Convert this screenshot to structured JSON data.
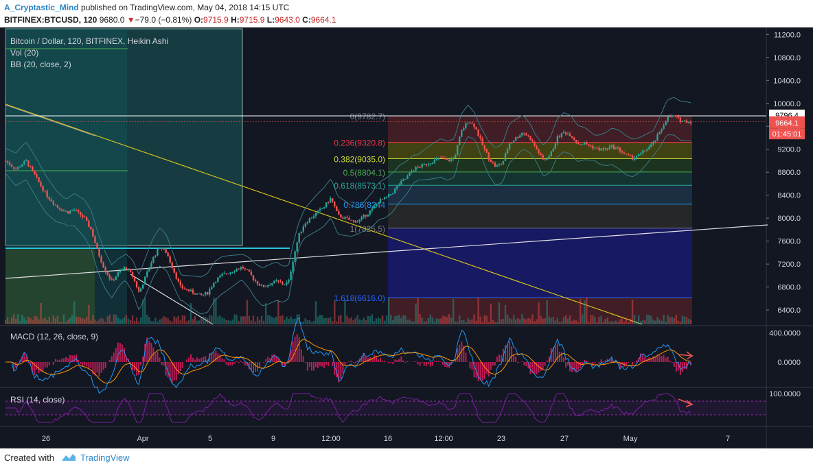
{
  "header": {
    "author": "A_Cryptastic_Mind",
    "published": " published on TradingView.com, May 04, 2018 14:15 UTC",
    "symbol": "BITFINEX:BTCUSD, 120",
    "last": " 9680.0 ",
    "change": "−79.0 (−0.81%)",
    "o_label": " O:",
    "o_val": "9715.9",
    "h_label": " H:",
    "h_val": "9715.9",
    "l_label": " L:",
    "l_val": "9643.0",
    "c_label": " C:",
    "c_val": "9664.1"
  },
  "legend": {
    "title": "Bitcoin / Dollar, 120, BITFINEX, Heikin Ashi",
    "vol": "Vol (20)",
    "bb": "BB (20, close, 2)",
    "macd": "MACD (12, 26, close, 9)",
    "rsi": "RSI (14, close)"
  },
  "colors": {
    "background": "#131722",
    "up": "#26a69a",
    "down": "#ef5350",
    "macd_hist": "#e91e63",
    "rsi": "#7b1fa2",
    "fib_blue": "#1a1a6e"
  },
  "footer": {
    "created": "Created with",
    "brand": "TradingView"
  },
  "chart_data": [
    {
      "type": "candlestick",
      "title": "Bitcoin / Dollar, 120, BITFINEX, Heikin Ashi",
      "ylim": [
        6150,
        11300
      ],
      "y_ticks": [
        "11200.0",
        "10800.0",
        "10400.0",
        "10000.0",
        "9600.0",
        "9200.0",
        "8800.0",
        "8400.0",
        "8000.0",
        "7600.0",
        "7200.0",
        "6800.0",
        "6400.0"
      ],
      "y_tick_values": [
        11200,
        10800,
        10400,
        10000,
        9600,
        9200,
        8800,
        8400,
        8000,
        7600,
        7200,
        6800,
        6400
      ],
      "x_ticks": [
        "26",
        "Apr",
        "5",
        "9",
        "12:00",
        "16",
        "12:00",
        "23",
        "27",
        "May",
        "7"
      ],
      "price_path": [
        [
          0,
          9000
        ],
        [
          0.015,
          8850
        ],
        [
          0.03,
          9000
        ],
        [
          0.045,
          8700
        ],
        [
          0.06,
          8400
        ],
        [
          0.075,
          8200
        ],
        [
          0.09,
          8100
        ],
        [
          0.1,
          8150
        ],
        [
          0.115,
          8000
        ],
        [
          0.125,
          7800
        ],
        [
          0.135,
          7400
        ],
        [
          0.145,
          7100
        ],
        [
          0.155,
          6900
        ],
        [
          0.165,
          7050
        ],
        [
          0.175,
          7150
        ],
        [
          0.185,
          7000
        ],
        [
          0.195,
          6700
        ],
        [
          0.205,
          7000
        ],
        [
          0.215,
          7300
        ],
        [
          0.225,
          7500
        ],
        [
          0.235,
          7400
        ],
        [
          0.245,
          7100
        ],
        [
          0.255,
          6800
        ],
        [
          0.265,
          6750
        ],
        [
          0.275,
          6700
        ],
        [
          0.285,
          6650
        ],
        [
          0.295,
          6700
        ],
        [
          0.305,
          6900
        ],
        [
          0.315,
          7000
        ],
        [
          0.325,
          7050
        ],
        [
          0.335,
          7100
        ],
        [
          0.345,
          7150
        ],
        [
          0.355,
          7050
        ],
        [
          0.365,
          6900
        ],
        [
          0.375,
          6800
        ],
        [
          0.385,
          6850
        ],
        [
          0.395,
          6900
        ],
        [
          0.405,
          6850
        ],
        [
          0.413,
          6880
        ],
        [
          0.42,
          7300
        ],
        [
          0.428,
          7700
        ],
        [
          0.436,
          7900
        ],
        [
          0.445,
          8000
        ],
        [
          0.455,
          8100
        ],
        [
          0.465,
          8200
        ],
        [
          0.475,
          8350
        ],
        [
          0.485,
          8050
        ],
        [
          0.495,
          8000
        ],
        [
          0.505,
          7950
        ],
        [
          0.515,
          7950
        ],
        [
          0.525,
          8050
        ],
        [
          0.535,
          8150
        ],
        [
          0.545,
          8300
        ],
        [
          0.555,
          8350
        ],
        [
          0.565,
          8450
        ],
        [
          0.575,
          8600
        ],
        [
          0.585,
          8700
        ],
        [
          0.595,
          8850
        ],
        [
          0.605,
          8900
        ],
        [
          0.615,
          8950
        ],
        [
          0.625,
          9000
        ],
        [
          0.635,
          9050
        ],
        [
          0.645,
          9000
        ],
        [
          0.655,
          9050
        ],
        [
          0.665,
          9500
        ],
        [
          0.675,
          9700
        ],
        [
          0.685,
          9600
        ],
        [
          0.695,
          9300
        ],
        [
          0.705,
          9050
        ],
        [
          0.715,
          8900
        ],
        [
          0.725,
          8950
        ],
        [
          0.735,
          9300
        ],
        [
          0.745,
          9400
        ],
        [
          0.755,
          9500
        ],
        [
          0.765,
          9400
        ],
        [
          0.775,
          9200
        ],
        [
          0.785,
          9000
        ],
        [
          0.795,
          9100
        ],
        [
          0.805,
          9400
        ],
        [
          0.815,
          9500
        ],
        [
          0.825,
          9450
        ],
        [
          0.835,
          9300
        ],
        [
          0.845,
          9300
        ],
        [
          0.855,
          9250
        ],
        [
          0.865,
          9200
        ],
        [
          0.875,
          9200
        ],
        [
          0.885,
          9250
        ],
        [
          0.895,
          9200
        ],
        [
          0.905,
          9100
        ],
        [
          0.915,
          9050
        ],
        [
          0.925,
          9100
        ],
        [
          0.935,
          9200
        ],
        [
          0.945,
          9300
        ],
        [
          0.955,
          9500
        ],
        [
          0.965,
          9750
        ],
        [
          0.975,
          9780
        ],
        [
          0.985,
          9700
        ],
        [
          1,
          9680
        ]
      ],
      "price_labels": [
        {
          "text": "9796.4",
          "value": 9796.4,
          "bg": "#ffffff",
          "fg": "#000000"
        },
        {
          "text": "9680.0",
          "value": 9680,
          "bg": "#ef5350",
          "fg": "#ffffff"
        },
        {
          "text": "9664.1",
          "value": 9664.1,
          "bg": "#ef5350",
          "fg": "#ffffff"
        },
        {
          "text": "01:45:01",
          "value": 9470,
          "bg": "#ef5350",
          "fg": "#ffffff"
        }
      ],
      "fibonacci": [
        {
          "label": "0(9782.7)",
          "value": 9782.7,
          "color": "#787b86",
          "fill": "#4a1f26"
        },
        {
          "label": "0.236(9320.8)",
          "value": 9320.8,
          "color": "#f23645",
          "fill": "#4a1f26"
        },
        {
          "label": "0.382(9035.0)",
          "value": 9035.0,
          "color": "#cddc39",
          "fill": "#4a4a10"
        },
        {
          "label": "0.5(8804.1)",
          "value": 8804.1,
          "color": "#4caf50",
          "fill": "#1e3a1e"
        },
        {
          "label": "0.618(8573.1)",
          "value": 8573.1,
          "color": "#26a69a",
          "fill": "#153a34"
        },
        {
          "label": "0.786(8244",
          "value": 8244,
          "color": "#2196f3",
          "fill": "#1f3246"
        },
        {
          "label": "1(7825.5)",
          "value": 7825.5,
          "color": "#787b86",
          "fill": "#2a2a2a"
        },
        {
          "label": "1.618(6616.0)",
          "value": 6616.0,
          "color": "#2962ff",
          "fill": "#1a1a6e"
        }
      ]
    },
    {
      "type": "line",
      "title": "MACD (12, 26, close, 9)",
      "y_ticks": [
        "400.0000",
        "0.0000"
      ],
      "ylim": [
        -330,
        480
      ]
    },
    {
      "type": "line",
      "title": "RSI (14, close)",
      "y_ticks": [
        "100.0000"
      ],
      "ylim": [
        0,
        100
      ],
      "levels": [
        70,
        30
      ]
    }
  ]
}
